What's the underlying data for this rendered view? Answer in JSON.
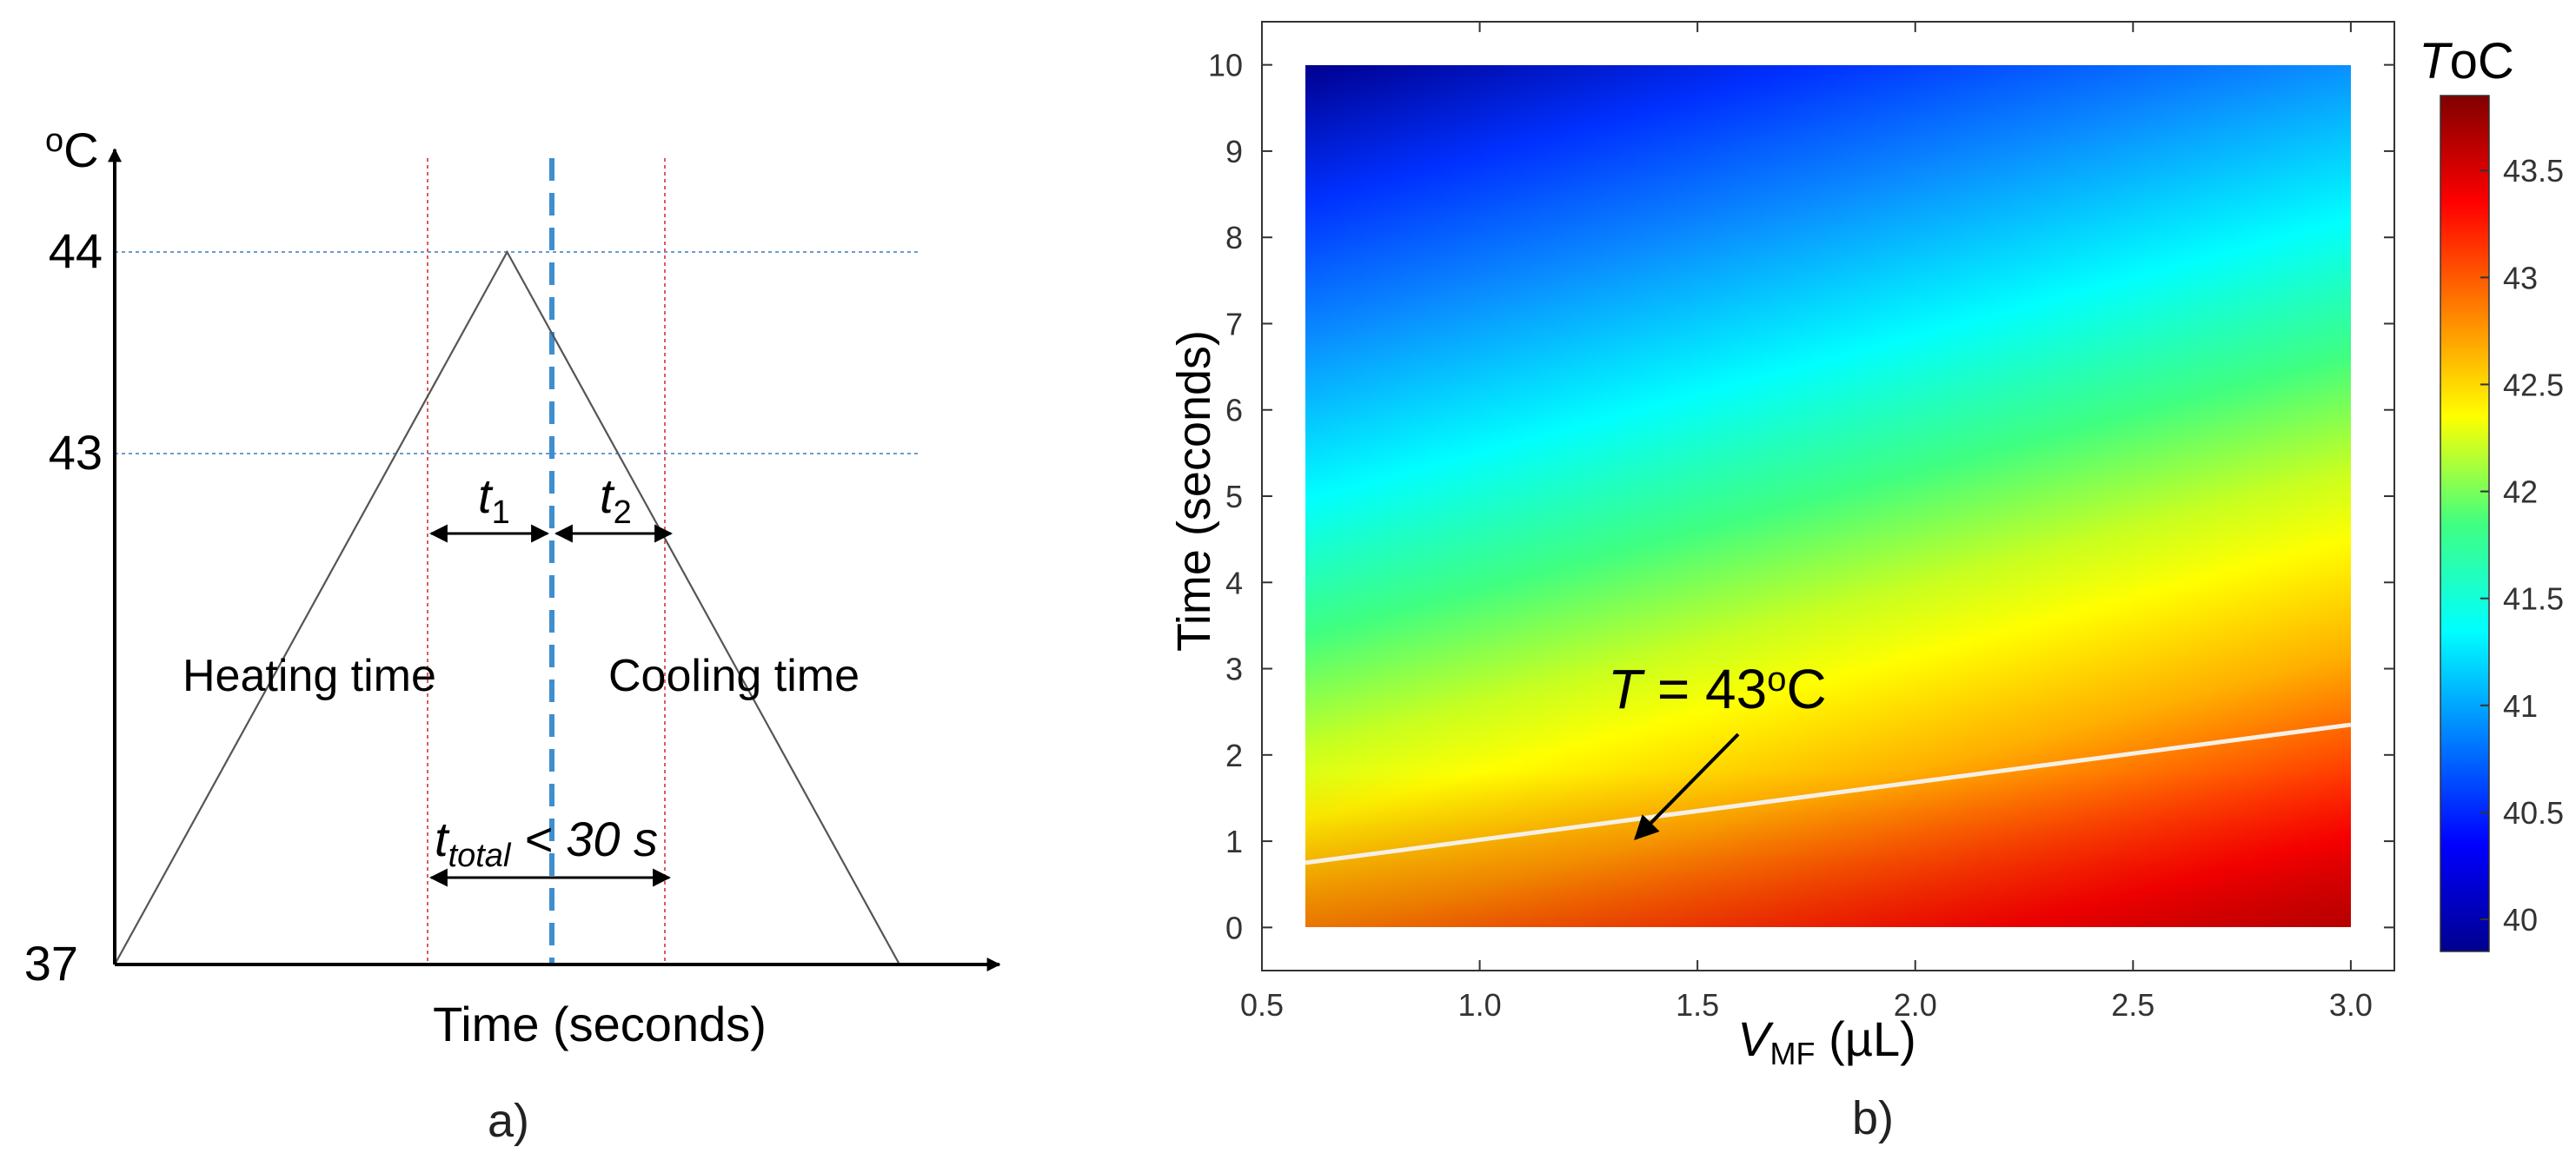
{
  "colors": {
    "axis": "#000000",
    "triangle": "#555555",
    "guide_blue": "#6b9ccf",
    "guide_red": "#e05a5a",
    "peak_dash": "#3f8fcf",
    "isoline": "#f5f0e6",
    "frame": "#333333"
  },
  "chart_data": [
    {
      "panel": "a)",
      "type": "line",
      "title": "",
      "xlabel": "Time (seconds)",
      "ylabel": "oC",
      "y_unit_parts": [
        "o",
        "C"
      ],
      "y_ticks": [
        37,
        43,
        44
      ],
      "x": [
        0,
        1,
        2
      ],
      "values": [
        37,
        44,
        37
      ],
      "threshold_line": 43,
      "peak_line": 44,
      "labels": {
        "heating": "Heating time",
        "cooling": "Cooling time",
        "t1": {
          "base": "t",
          "sub": "1"
        },
        "t2": {
          "base": "t",
          "sub": "2"
        },
        "total": {
          "base": "t",
          "sub": "total",
          "rest": " < 30 s"
        }
      }
    },
    {
      "panel": "b)",
      "type": "heatmap",
      "xlabel": {
        "symbol": "V",
        "sub": "MF",
        "unit": " (µL)"
      },
      "ylabel": "Time (seconds)",
      "xlim": [
        0.5,
        3.1
      ],
      "ylim": [
        -0.5,
        10.5
      ],
      "data_extent": {
        "x": [
          0.6,
          3.0
        ],
        "y": [
          0,
          10
        ]
      },
      "x_ticks": [
        "0.5",
        "1.0",
        "1.5",
        "2.0",
        "2.5",
        "3.0"
      ],
      "y_ticks": [
        "0",
        "1",
        "2",
        "3",
        "4",
        "5",
        "6",
        "7",
        "8",
        "9",
        "10"
      ],
      "colorbar": {
        "title": {
          "symbol": "T",
          "unit": "oC"
        },
        "range": [
          39.85,
          43.85
        ],
        "ticks": [
          "40",
          "40.5",
          "41",
          "41.5",
          "42",
          "42.5",
          "43",
          "43.5"
        ],
        "colormap": "jet"
      },
      "isoline": {
        "label": {
          "symbol": "T",
          "rest": " = 43",
          "sup": "o",
          "end": "C"
        },
        "value": 43,
        "x": [
          0.6,
          3.0
        ],
        "y": [
          0.75,
          2.35
        ]
      }
    }
  ]
}
